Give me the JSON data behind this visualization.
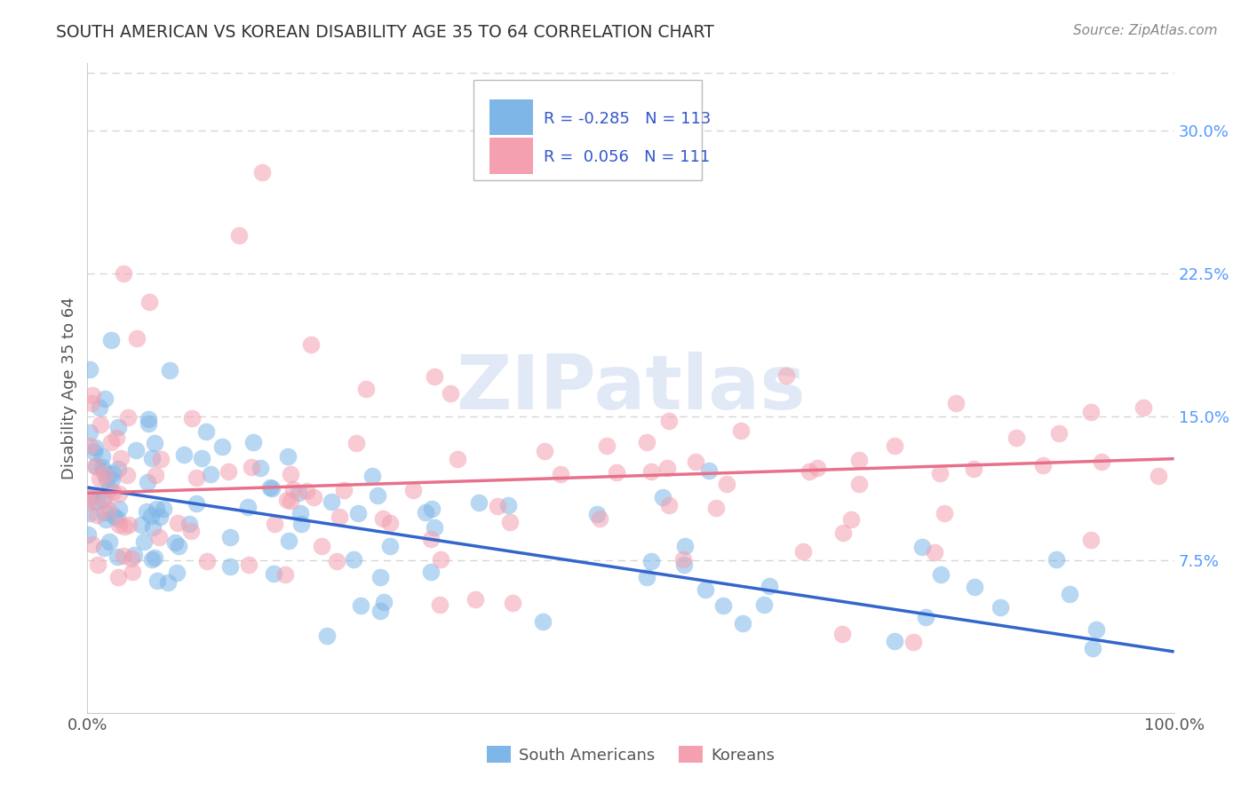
{
  "title": "SOUTH AMERICAN VS KOREAN DISABILITY AGE 35 TO 64 CORRELATION CHART",
  "source": "Source: ZipAtlas.com",
  "ylabel": "Disability Age 35 to 64",
  "xlim": [
    0,
    100
  ],
  "ylim": [
    -0.005,
    0.335
  ],
  "xtick_labels": [
    "0.0%",
    "100.0%"
  ],
  "ytick_positions": [
    0.075,
    0.15,
    0.225,
    0.3
  ],
  "ytick_labels": [
    "7.5%",
    "15.0%",
    "22.5%",
    "30.0%"
  ],
  "grid_color": "#cccccc",
  "background_color": "#ffffff",
  "south_american_color": "#7EB6E8",
  "korean_color": "#F4A0B0",
  "south_american_line_color": "#3366CC",
  "korean_line_color": "#E8708A",
  "legend_R_south": "-0.285",
  "legend_N_south": "113",
  "legend_R_korean": "0.056",
  "legend_N_korean": "111",
  "legend_label_south": "South Americans",
  "legend_label_korean": "Koreans",
  "watermark": "ZIPatlas",
  "sa_line_x0": 0,
  "sa_line_y0": 0.113,
  "sa_line_x1": 100,
  "sa_line_y1": 0.027,
  "k_line_x0": 0,
  "k_line_y0": 0.11,
  "k_line_x1": 100,
  "k_line_y1": 0.128
}
